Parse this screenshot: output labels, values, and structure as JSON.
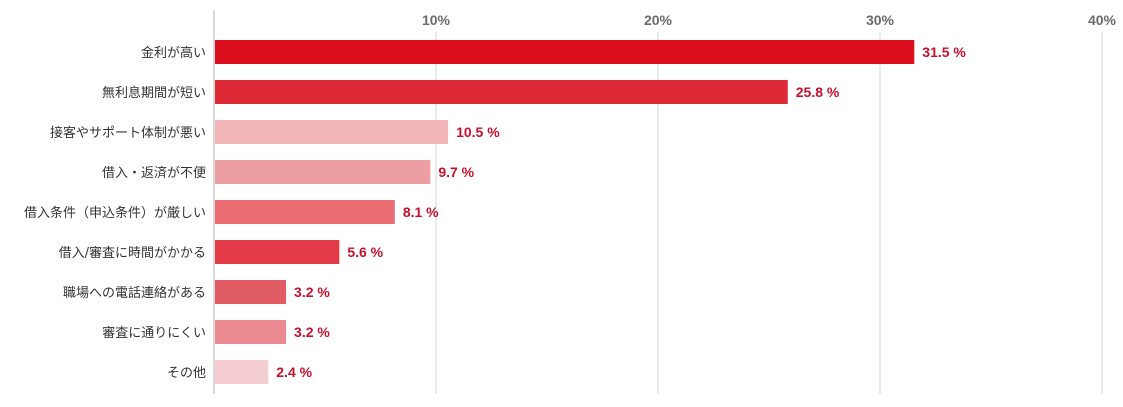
{
  "chart_data": {
    "type": "bar",
    "orientation": "horizontal",
    "title": "",
    "xlabel": "",
    "ylabel": "",
    "xlim": [
      0,
      40
    ],
    "x_ticks": [
      10,
      20,
      30,
      40
    ],
    "x_tick_labels": [
      "10%",
      "20%",
      "30%",
      "40%"
    ],
    "grid": "vertical",
    "categories": [
      "金利が高い",
      "無利息期間が短い",
      "接客やサポート体制が悪い",
      "借入・返済が不便",
      "借入条件（申込条件）が厳しい",
      "借入/審査に時間がかかる",
      "職場への電話連絡がある",
      "審査に通りにくい",
      "その他"
    ],
    "values": [
      31.5,
      25.8,
      10.5,
      9.7,
      8.1,
      5.6,
      3.2,
      3.2,
      2.4
    ],
    "value_labels": [
      "31.5 %",
      "25.8 %",
      "10.5 %",
      "9.7 %",
      "8.1 %",
      "5.6 %",
      "3.2 %",
      "3.2 %",
      "2.4 %"
    ],
    "bar_colors": [
      "#dc0f1f",
      "#de2937",
      "#f2b6b9",
      "#ed9ea3",
      "#e96d73",
      "#e23b47",
      "#e05b64",
      "#ec8a92",
      "#f6ced2"
    ],
    "value_label_color": "#c8102e",
    "gridline_color": "#d4d4d4",
    "axis_color": "#b0b0b0"
  }
}
